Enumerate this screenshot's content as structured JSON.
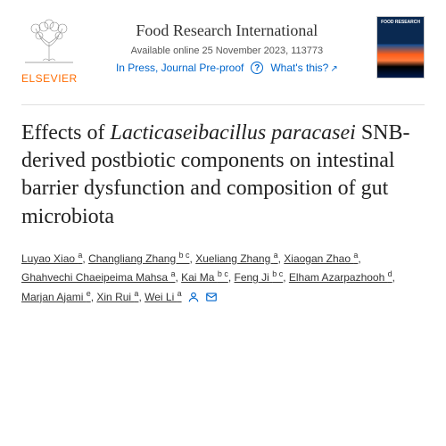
{
  "publisher": {
    "label": "ELSEVIER"
  },
  "journal": {
    "name": "Food Research International",
    "availability": "Available online 25 November 2023, 113773",
    "status": "In Press, Journal Pre-proof",
    "whats_this": "What's this?",
    "cover_text": "FOOD RESEARCH"
  },
  "article": {
    "title_pre": "Effects of ",
    "title_italic": "Lacticaseibacillus paracasei",
    "title_post": " SNB-derived postbiotic components on intestinal barrier dysfunction and composition of gut microbiota"
  },
  "authors": [
    {
      "name": "Luyao Xiao",
      "aff": "a"
    },
    {
      "name": "Changliang Zhang",
      "aff": "b c"
    },
    {
      "name": "Xueliang Zhang",
      "aff": "a"
    },
    {
      "name": "Xiaogan Zhao",
      "aff": "a"
    },
    {
      "name": "Ghahvechi Chaeipeima Mahsa",
      "aff": "a"
    },
    {
      "name": "Kai Ma",
      "aff": "b c"
    },
    {
      "name": "Feng Ji",
      "aff": "b c"
    },
    {
      "name": "Elham Azarpazhooh",
      "aff": "d"
    },
    {
      "name": "Marjan Ajami",
      "aff": "e"
    },
    {
      "name": "Xin Rui",
      "aff": "a"
    },
    {
      "name": "Wei Li",
      "aff": "a"
    }
  ],
  "colors": {
    "link": "#0066cc",
    "elsevier": "#ff6c00"
  }
}
